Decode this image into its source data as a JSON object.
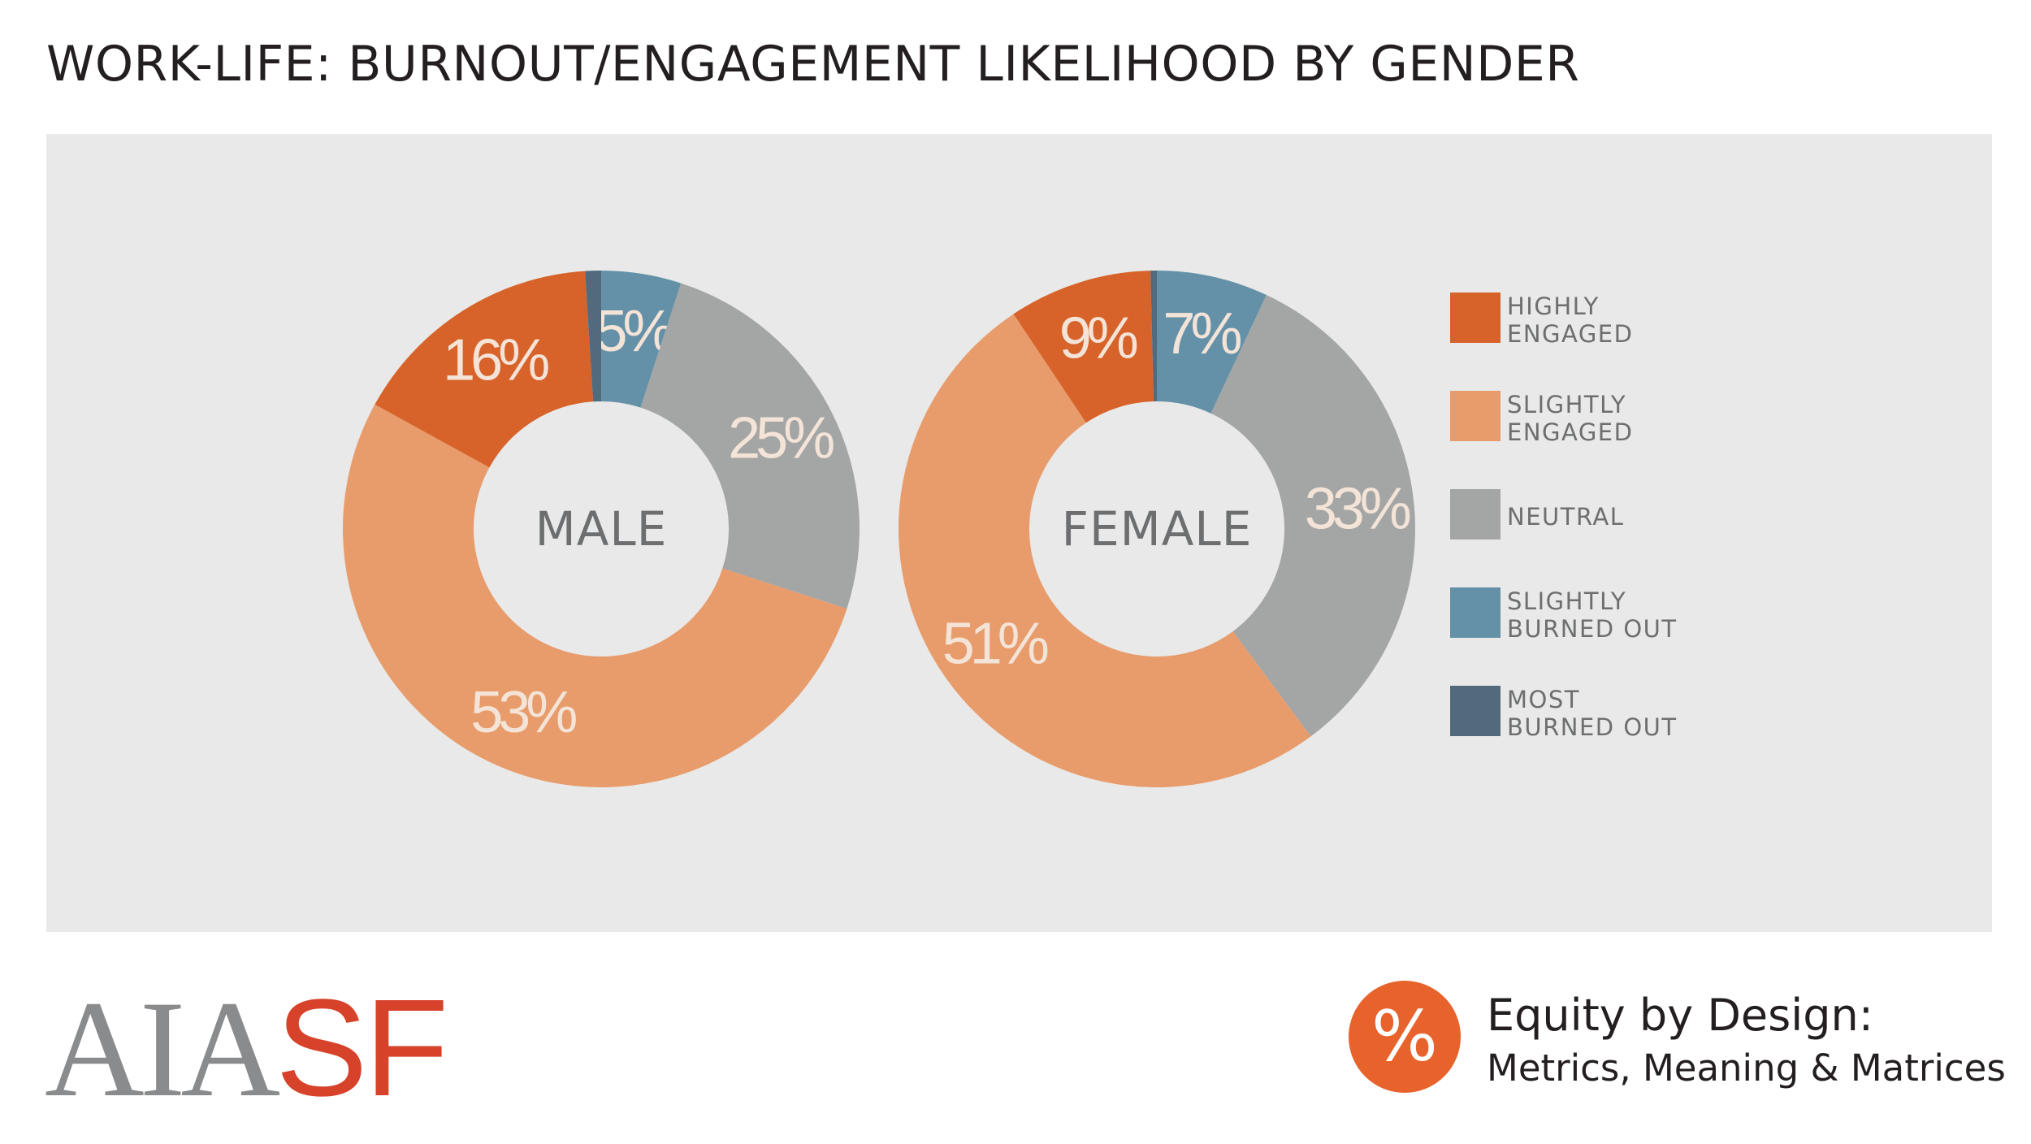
{
  "title": "WORK-LIFE: BURNOUT/ENGAGEMENT LIKELIHOOD BY GENDER",
  "chart_data": {
    "type": "pie",
    "variant": "donut",
    "title": "WORK-LIFE: BURNOUT/ENGAGEMENT LIKELIHOOD BY GENDER",
    "legend_position": "right",
    "categories": [
      "HIGHLY ENGAGED",
      "SLIGHTLY ENGAGED",
      "NEUTRAL",
      "SLIGHTLY BURNED OUT",
      "MOST BURNED OUT"
    ],
    "colors": [
      "#d7632a",
      "#e89c6c",
      "#a4a5a5",
      "#6591a8",
      "#516b7d"
    ],
    "series": [
      {
        "name": "MALE",
        "values": [
          16,
          53,
          25,
          5,
          1
        ],
        "labels": [
          "16%",
          "53%",
          "25%",
          "5%",
          ""
        ]
      },
      {
        "name": "FEMALE",
        "values": [
          9,
          51,
          33,
          7,
          0.4
        ],
        "labels": [
          "9%",
          "51%",
          "33%",
          "7%",
          ""
        ]
      }
    ]
  },
  "legend": [
    {
      "line1": "HIGHLY",
      "line2": "ENGAGED"
    },
    {
      "line1": "SLIGHTLY",
      "line2": "ENGAGED"
    },
    {
      "line1": "NEUTRAL",
      "line2": ""
    },
    {
      "line1": "SLIGHTLY",
      "line2": "BURNED OUT"
    },
    {
      "line1": "MOST",
      "line2": "BURNED OUT"
    }
  ],
  "footer": {
    "logo_aia": "AIA",
    "logo_sf": "SF",
    "badge_symbol": "%",
    "title": "Equity by Design:",
    "subtitle": "Metrics, Meaning & Matrices"
  }
}
